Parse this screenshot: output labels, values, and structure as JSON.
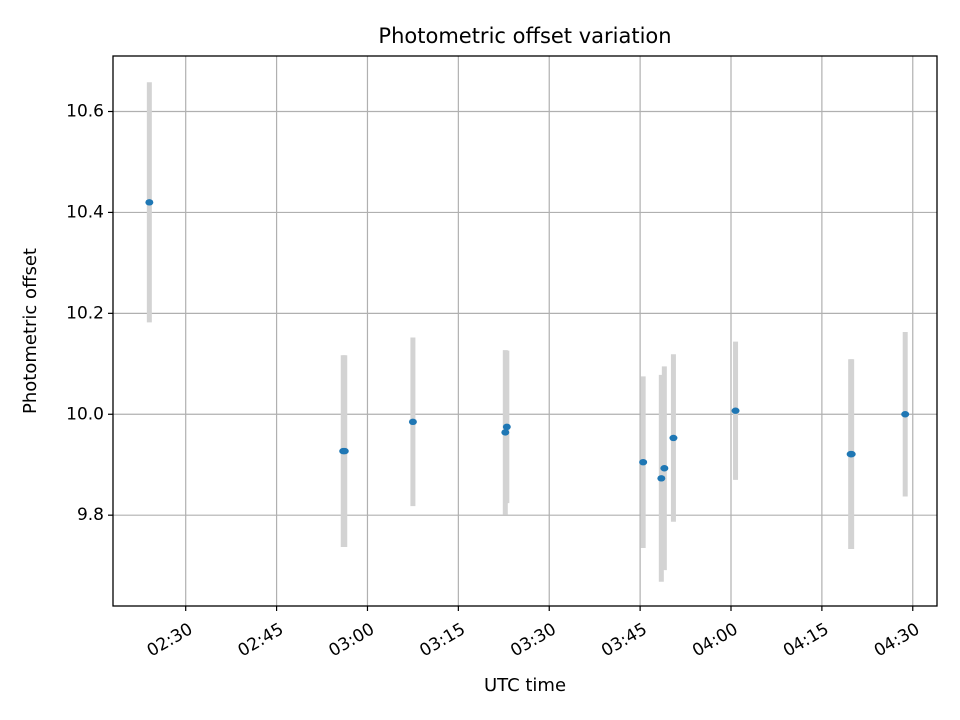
{
  "chart_data": {
    "type": "scatter",
    "title": "Photometric offset variation",
    "xlabel": "UTC time",
    "ylabel": "Photometric offset",
    "x_is_time": true,
    "xlim": [
      "02:18",
      "04:34"
    ],
    "ylim": [
      9.62,
      10.71
    ],
    "x_ticks": [
      "02:30",
      "02:45",
      "03:00",
      "03:15",
      "03:30",
      "03:45",
      "04:00",
      "04:15",
      "04:30"
    ],
    "y_ticks": [
      9.8,
      10.0,
      10.2,
      10.4,
      10.6
    ],
    "grid": true,
    "point_color": "#1f77b4",
    "errorbar_color": "#d3d3d3",
    "series": [
      {
        "x": [
          "02:24:00",
          "02:56:00",
          "02:56:15",
          "03:07:30",
          "03:22:45",
          "03:23:00",
          "03:45:30",
          "03:48:30",
          "03:49:00",
          "03:50:30",
          "04:00:45",
          "04:19:45",
          "04:19:55",
          "04:28:45"
        ],
        "y": [
          10.42,
          9.927,
          9.927,
          9.985,
          9.964,
          9.975,
          9.905,
          9.873,
          9.893,
          9.953,
          10.007,
          9.921,
          9.921,
          10.0
        ],
        "err": [
          0.238,
          0.19,
          0.19,
          0.167,
          0.163,
          0.151,
          0.17,
          0.205,
          0.202,
          0.166,
          0.137,
          0.188,
          0.188,
          0.163
        ]
      }
    ]
  }
}
